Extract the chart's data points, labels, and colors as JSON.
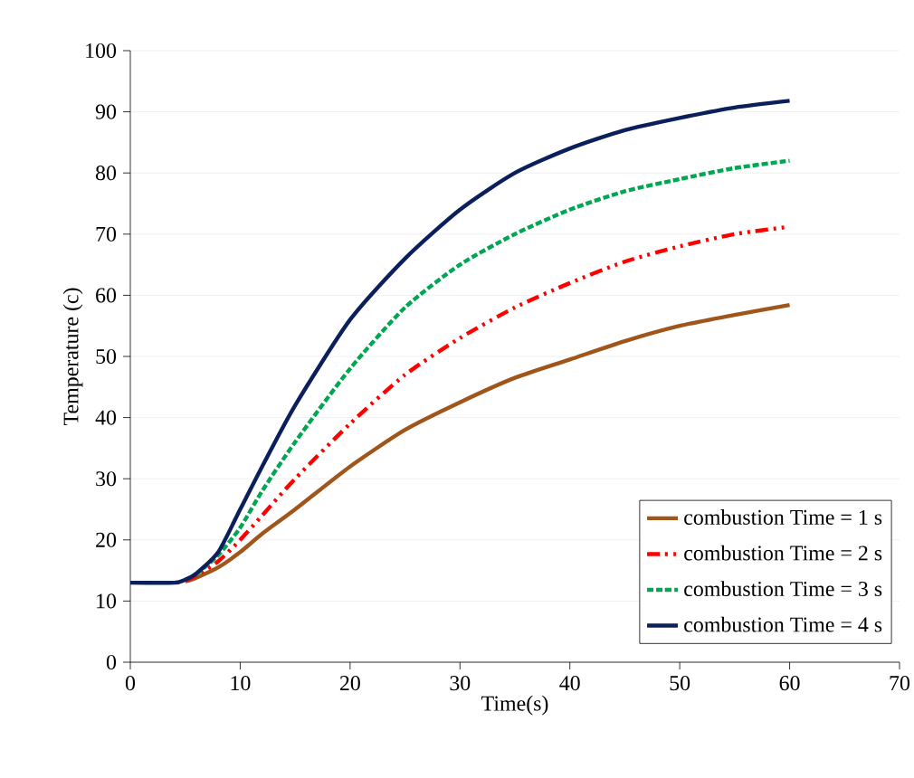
{
  "chart_data": {
    "type": "line",
    "xlabel": "Time(s)",
    "ylabel": "Temperature (c)",
    "xlim": [
      0,
      70
    ],
    "ylim": [
      0,
      100
    ],
    "xticks": [
      0,
      10,
      20,
      30,
      40,
      50,
      60,
      70
    ],
    "yticks": [
      0,
      10,
      20,
      30,
      40,
      50,
      60,
      70,
      80,
      90,
      100
    ],
    "grid": "y",
    "legend": "bottom right",
    "marker": "none",
    "series": [
      {
        "name": "combustion Time = 1 s",
        "color": "#a0561a",
        "line_style": "solid",
        "x": [
          5,
          6,
          8,
          10,
          12,
          15,
          20,
          25,
          30,
          35,
          40,
          45,
          50,
          55,
          60
        ],
        "values": [
          13.2,
          13.8,
          15.5,
          18,
          21,
          25,
          32,
          38,
          42.5,
          46.5,
          49.5,
          52.5,
          55,
          56.8,
          58.4
        ]
      },
      {
        "name": "combustion Time = 2 s",
        "color": "#ff0000",
        "line_style": "dashdot",
        "x": [
          5,
          6,
          8,
          10,
          12,
          15,
          20,
          25,
          30,
          35,
          40,
          45,
          50,
          55,
          60
        ],
        "values": [
          13.3,
          14.2,
          16.5,
          20,
          24,
          30,
          39,
          47,
          53,
          58,
          62,
          65.5,
          68,
          70,
          71.2
        ]
      },
      {
        "name": "combustion Time = 3 s",
        "color": "#00a651",
        "line_style": "dashed",
        "x": [
          6,
          8,
          10,
          12,
          15,
          20,
          25,
          30,
          35,
          40,
          45,
          50,
          55,
          60
        ],
        "values": [
          14.4,
          17.5,
          22,
          28,
          36,
          48,
          58,
          65,
          70,
          74,
          77,
          79,
          80.8,
          82
        ]
      },
      {
        "name": "combustion Time = 4 s",
        "color": "#0a1f5c",
        "line_style": "solid",
        "x": [
          0,
          4,
          5,
          6,
          8,
          10,
          12,
          15,
          20,
          25,
          30,
          35,
          40,
          45,
          50,
          55,
          60
        ],
        "values": [
          13,
          13,
          13.5,
          14.5,
          18,
          25,
          32,
          42,
          56,
          66,
          74,
          80,
          84,
          87,
          89,
          90.7,
          91.8
        ]
      }
    ]
  }
}
